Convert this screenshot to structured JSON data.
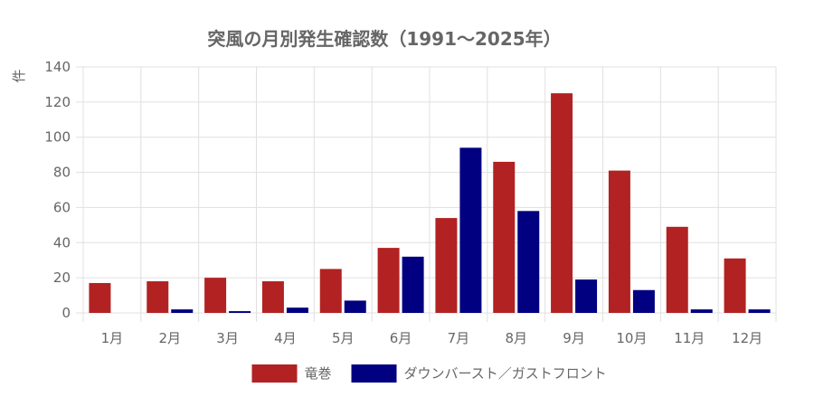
{
  "chart_data": {
    "type": "bar",
    "title": "突風の月別発生確認数（1991〜2025年）",
    "ylabel": "件",
    "ylim": [
      0,
      140
    ],
    "yticks": [
      0,
      20,
      40,
      60,
      80,
      100,
      120,
      140
    ],
    "categories": [
      "1月",
      "2月",
      "3月",
      "4月",
      "5月",
      "6月",
      "7月",
      "8月",
      "9月",
      "10月",
      "11月",
      "12月"
    ],
    "series": [
      {
        "name": "竜巻",
        "color": "#b22222",
        "values": [
          17,
          18,
          20,
          18,
          25,
          37,
          54,
          86,
          125,
          81,
          49,
          31
        ]
      },
      {
        "name": "ダウンバースト／ガストフロント",
        "color": "#000080",
        "values": [
          0,
          2,
          1,
          3,
          7,
          32,
          94,
          58,
          19,
          13,
          2,
          2
        ]
      }
    ],
    "grid": true,
    "legend_position": "bottom"
  }
}
